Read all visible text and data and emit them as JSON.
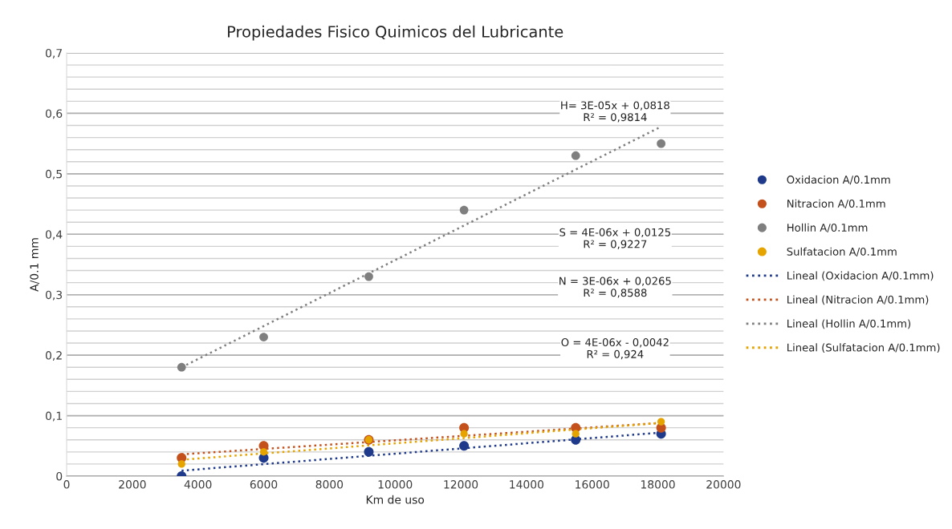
{
  "chart_data": {
    "type": "scatter",
    "title": "Propiedades Fisico Quimicos del Lubricante",
    "xlabel": "Km de uso",
    "ylabel": "A/0.1 mm",
    "series": [
      {
        "name": "Oxidacion A/0.1mm",
        "marker": "circle",
        "color": "#1f3a8a",
        "x": [
          3500,
          6000,
          9200,
          12100,
          15500,
          18100
        ],
        "values": [
          0,
          0.03,
          0.04,
          0.05,
          0.06,
          0.07
        ]
      },
      {
        "name": "Nitracion A/0.1mm",
        "marker": "circle",
        "color": "#c4501b",
        "x": [
          3500,
          6000,
          9200,
          12100,
          15500,
          18100
        ],
        "values": [
          0.03,
          0.05,
          0.06,
          0.08,
          0.08,
          0.08
        ]
      },
      {
        "name": "Hollin A/0.1mm",
        "marker": "circle",
        "color": "#7f7f7f",
        "x": [
          3500,
          6000,
          9200,
          12100,
          15500,
          18100
        ],
        "values": [
          0.18,
          0.23,
          0.33,
          0.44,
          0.53,
          0.55
        ]
      },
      {
        "name": "Sulfatacion A/0.1mm",
        "marker": "circle",
        "color": "#e6a400",
        "x": [
          3500,
          6000,
          9200,
          12100,
          15500,
          18100
        ],
        "values": [
          0.02,
          0.04,
          0.06,
          0.07,
          0.07,
          0.09
        ]
      },
      {
        "name": "Lineal (Oxidacion A/0.1mm)",
        "type": "line",
        "marker": "none",
        "line_style": "dotted",
        "color": "#1f3a8a",
        "x": [
          3500,
          18100
        ],
        "values": [
          0.009,
          0.072
        ]
      },
      {
        "name": "Lineal (Nitracion A/0.1mm)",
        "type": "line",
        "marker": "none",
        "line_style": "dotted",
        "color": "#c4501b",
        "x": [
          3500,
          18100
        ],
        "values": [
          0.036,
          0.088
        ]
      },
      {
        "name": "Lineal (Hollin A/0.1mm)",
        "type": "line",
        "marker": "none",
        "line_style": "dotted",
        "color": "#7f7f7f",
        "x": [
          3500,
          18100
        ],
        "values": [
          0.18,
          0.578
        ]
      },
      {
        "name": "Lineal (Sulfatacion A/0.1mm)",
        "type": "line",
        "marker": "none",
        "line_style": "dotted",
        "color": "#e6a400",
        "x": [
          3500,
          18100
        ],
        "values": [
          0.027,
          0.088
        ]
      }
    ],
    "annotations": [
      "H= 3E-05x + 0,0818\nR² = 0,9814",
      "S = 4E-06x + 0,0125\nR² = 0,9227",
      "N = 3E-06x + 0,0265\nR² = 0,8588",
      "O = 4E-06x - 0,0042\nR² = 0,924"
    ],
    "xlim": [
      0,
      20000
    ],
    "xticks": [
      0,
      2000,
      4000,
      6000,
      8000,
      10000,
      12000,
      14000,
      16000,
      18000,
      20000
    ],
    "ylim": [
      0,
      0.7
    ],
    "yticks": [
      {
        "value": 0,
        "label": "0"
      },
      {
        "value": 0.02,
        "label": null
      },
      {
        "value": 0.04,
        "label": null
      },
      {
        "value": 0.06,
        "label": null
      },
      {
        "value": 0.08,
        "label": null
      },
      {
        "value": 0.1,
        "label": "0,1"
      },
      {
        "value": 0.12,
        "label": null
      },
      {
        "value": 0.14,
        "label": null
      },
      {
        "value": 0.16,
        "label": null
      },
      {
        "value": 0.18,
        "label": null
      },
      {
        "value": 0.2,
        "label": "0,2"
      },
      {
        "value": 0.22,
        "label": null
      },
      {
        "value": 0.24,
        "label": null
      },
      {
        "value": 0.26,
        "label": null
      },
      {
        "value": 0.28,
        "label": null
      },
      {
        "value": 0.3,
        "label": "0,3"
      },
      {
        "value": 0.32,
        "label": null
      },
      {
        "value": 0.34,
        "label": null
      },
      {
        "value": 0.36,
        "label": null
      },
      {
        "value": 0.38,
        "label": null
      },
      {
        "value": 0.4,
        "label": "0,4"
      },
      {
        "value": 0.42,
        "label": null
      },
      {
        "value": 0.44,
        "label": null
      },
      {
        "value": 0.46,
        "label": null
      },
      {
        "value": 0.48,
        "label": null
      },
      {
        "value": 0.5,
        "label": "0,5"
      },
      {
        "value": 0.52,
        "label": null
      },
      {
        "value": 0.54,
        "label": null
      },
      {
        "value": 0.56,
        "label": null
      },
      {
        "value": 0.58,
        "label": null
      },
      {
        "value": 0.6,
        "label": "0,6"
      },
      {
        "value": 0.62,
        "label": null
      },
      {
        "value": 0.64,
        "label": null
      },
      {
        "value": 0.66,
        "label": null
      },
      {
        "value": 0.68,
        "label": null
      },
      {
        "value": 0.7,
        "label": "0,7"
      }
    ],
    "grid": "y",
    "legend": "right"
  }
}
